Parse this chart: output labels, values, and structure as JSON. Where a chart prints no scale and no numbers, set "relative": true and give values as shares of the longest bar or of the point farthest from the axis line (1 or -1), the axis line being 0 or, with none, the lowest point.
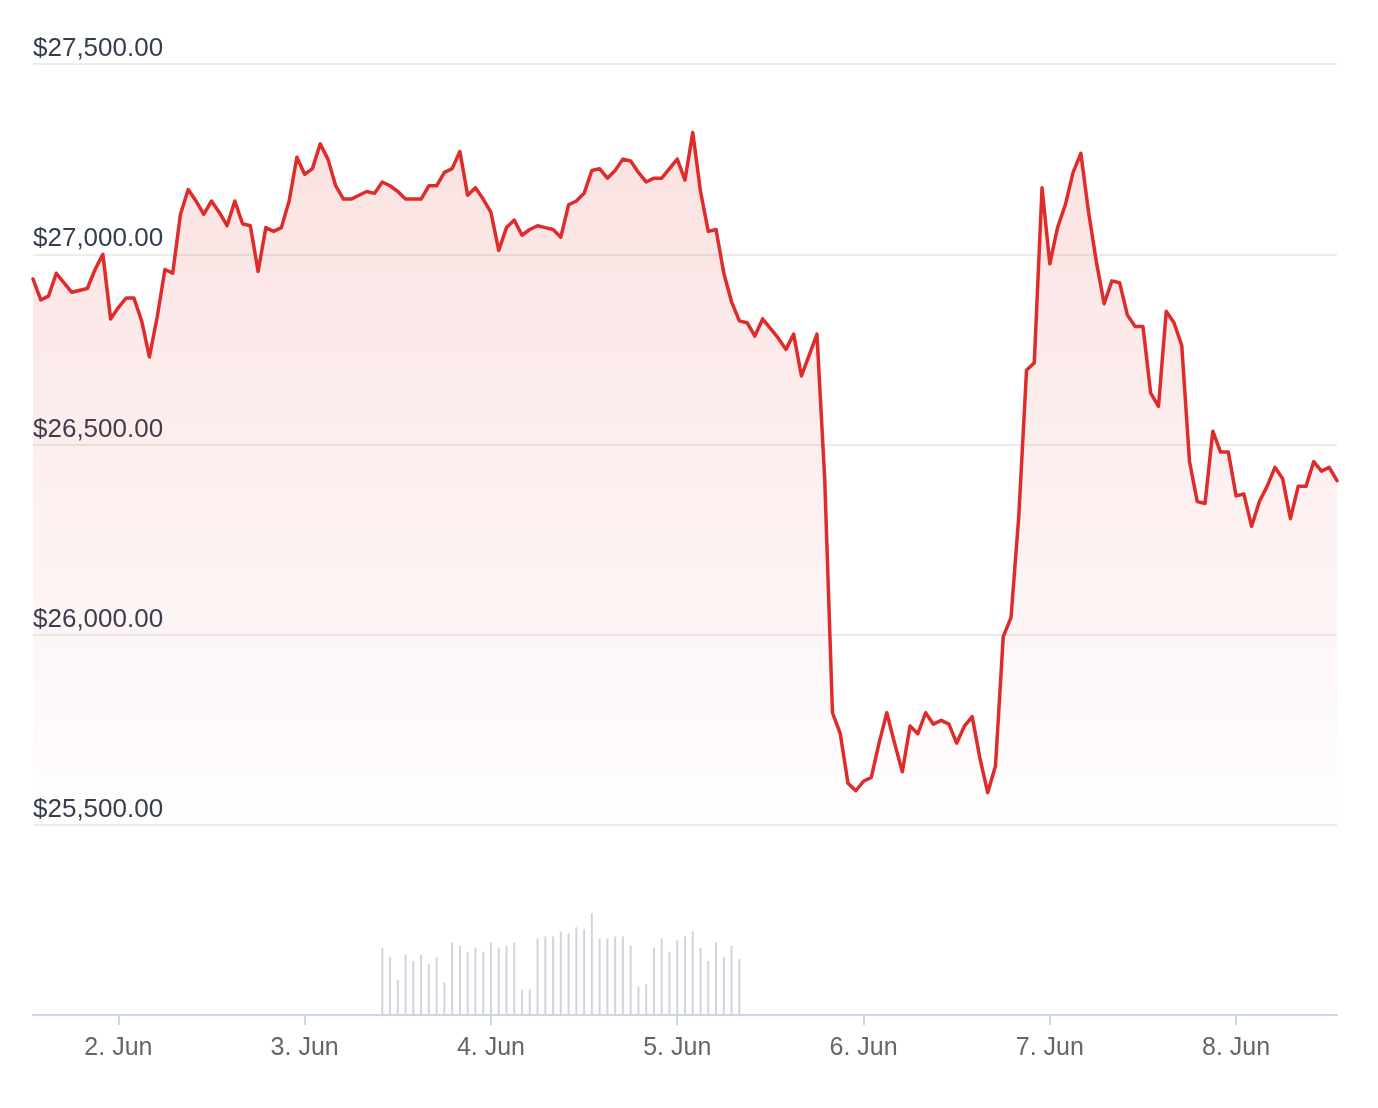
{
  "chart_data": [
    {
      "type": "area",
      "color": "#e02b2b",
      "xlim": [
        "--06-01T13:00",
        "--06-08T13:00"
      ],
      "ylim": [
        25500,
        27500
      ],
      "yticks": [
        {
          "value": 25500,
          "label": "$25,500.00"
        },
        {
          "value": 26000,
          "label": "$26,000.00"
        },
        {
          "value": 26500,
          "label": "$26,500.00"
        },
        {
          "value": 27000,
          "label": "$27,000.00"
        },
        {
          "value": 27500,
          "label": "$27,500.00"
        }
      ],
      "grid": "y",
      "tick_labels": "y",
      "x": [
        "--06-01T13:00",
        "--06-01T14:00",
        "--06-01T15:00",
        "--06-01T16:00",
        "--06-01T18:00",
        "--06-01T20:00",
        "--06-01T21:00",
        "--06-01T22:00",
        "--06-01T23:00",
        "--06-02T00:00",
        "--06-02T01:00",
        "--06-02T02:00",
        "--06-02T03:00",
        "--06-02T04:00",
        "--06-02T05:00",
        "--06-02T06:00",
        "--06-02T07:00",
        "--06-02T08:00",
        "--06-02T09:00",
        "--06-02T10:00",
        "--06-02T11:00",
        "--06-02T12:00",
        "--06-02T13:00",
        "--06-02T14:00",
        "--06-02T15:00",
        "--06-02T16:00",
        "--06-02T17:00",
        "--06-02T18:00",
        "--06-02T19:00",
        "--06-02T20:00",
        "--06-02T21:00",
        "--06-02T22:00",
        "--06-02T23:00",
        "--06-03T00:00",
        "--06-03T01:00",
        "--06-03T02:00",
        "--06-03T03:00",
        "--06-03T04:00",
        "--06-03T05:00",
        "--06-03T06:00",
        "--06-03T07:00",
        "--06-03T08:00",
        "--06-03T09:00",
        "--06-03T10:00",
        "--06-03T11:00",
        "--06-03T12:00",
        "--06-03T13:00",
        "--06-03T14:00",
        "--06-03T15:00",
        "--06-03T16:00",
        "--06-03T17:00",
        "--06-03T18:00",
        "--06-03T19:00",
        "--06-03T20:00",
        "--06-03T21:00",
        "--06-03T22:00",
        "--06-03T23:00",
        "--06-04T00:00",
        "--06-04T01:00",
        "--06-04T02:00",
        "--06-04T03:00",
        "--06-04T04:00",
        "--06-04T05:00",
        "--06-04T06:00",
        "--06-04T07:00",
        "--06-04T08:00",
        "--06-04T09:00",
        "--06-04T10:00",
        "--06-04T11:00",
        "--06-04T12:00",
        "--06-04T13:00",
        "--06-04T14:00",
        "--06-04T15:00",
        "--06-04T16:00",
        "--06-04T17:00",
        "--06-04T18:00",
        "--06-04T19:00",
        "--06-04T20:00",
        "--06-04T21:00",
        "--06-04T22:00",
        "--06-04T23:00",
        "--06-05T00:00",
        "--06-05T01:00",
        "--06-05T02:00",
        "--06-05T03:00",
        "--06-05T04:00",
        "--06-05T05:00",
        "--06-05T06:00",
        "--06-05T07:00",
        "--06-05T08:00",
        "--06-05T09:00",
        "--06-05T10:00",
        "--06-05T11:00",
        "--06-05T12:00",
        "--06-05T13:00",
        "--06-05T14:00",
        "--06-05T15:00",
        "--06-05T16:00",
        "--06-05T17:00",
        "--06-05T18:00",
        "--06-05T19:00",
        "--06-05T20:00",
        "--06-05T21:00",
        "--06-05T22:00",
        "--06-05T23:00",
        "--06-06T00:00",
        "--06-06T01:00",
        "--06-06T02:00",
        "--06-06T03:00",
        "--06-06T04:00",
        "--06-06T05:00",
        "--06-06T06:00",
        "--06-06T07:00",
        "--06-06T08:00",
        "--06-06T09:00",
        "--06-06T10:00",
        "--06-06T11:00",
        "--06-06T12:00",
        "--06-06T13:00",
        "--06-06T14:00",
        "--06-06T15:00",
        "--06-06T16:00",
        "--06-06T17:00",
        "--06-06T18:00",
        "--06-06T19:00",
        "--06-06T20:00",
        "--06-06T21:00",
        "--06-06T22:00",
        "--06-06T23:00",
        "--06-07T00:00",
        "--06-07T01:00",
        "--06-07T02:00",
        "--06-07T03:00",
        "--06-07T04:00",
        "--06-07T05:00",
        "--06-07T06:00",
        "--06-07T07:00",
        "--06-07T08:00",
        "--06-07T09:00",
        "--06-07T10:00",
        "--06-07T11:00",
        "--06-07T12:00",
        "--06-07T13:00",
        "--06-07T14:00",
        "--06-07T15:00",
        "--06-07T16:00",
        "--06-07T17:00",
        "--06-07T18:00",
        "--06-07T19:00",
        "--06-07T20:00",
        "--06-07T21:00",
        "--06-07T22:00",
        "--06-07T23:00",
        "--06-08T00:00",
        "--06-08T01:00",
        "--06-08T02:00",
        "--06-08T03:00",
        "--06-08T04:00",
        "--06-08T05:00",
        "--06-08T06:00",
        "--06-08T07:00",
        "--06-08T08:00",
        "--06-08T09:00",
        "--06-08T10:00",
        "--06-08T11:00",
        "--06-08T12:00",
        "--06-08T13:00"
      ],
      "values": [
        26935,
        26880,
        26890,
        26950,
        26900,
        26910,
        26960,
        27000,
        26830,
        26860,
        26885,
        26885,
        26825,
        26730,
        26835,
        26960,
        26950,
        27105,
        27170,
        27140,
        27105,
        27140,
        27110,
        27075,
        27140,
        27080,
        27075,
        26955,
        27070,
        27060,
        27070,
        27140,
        27255,
        27210,
        27225,
        27290,
        27250,
        27180,
        27145,
        27145,
        27155,
        27165,
        27160,
        27190,
        27180,
        27165,
        27145,
        27145,
        27145,
        27180,
        27180,
        27215,
        27225,
        27270,
        27155,
        27175,
        27145,
        27110,
        27010,
        27070,
        27090,
        27050,
        27065,
        27075,
        27070,
        27065,
        27045,
        27130,
        27140,
        27160,
        27220,
        27225,
        27200,
        27220,
        27250,
        27245,
        27215,
        27190,
        27200,
        27200,
        27225,
        27250,
        27195,
        27320,
        27165,
        27060,
        27065,
        26950,
        26875,
        26825,
        26820,
        26785,
        26830,
        26805,
        26780,
        26750,
        26790,
        26680,
        26735,
        26790,
        26410,
        25795,
        25740,
        25610,
        25590,
        25615,
        25625,
        25715,
        25795,
        25715,
        25640,
        25760,
        25740,
        25795,
        25765,
        25775,
        25765,
        25715,
        25760,
        25785,
        25675,
        25585,
        25655,
        25995,
        26045,
        26310,
        26695,
        26715,
        27175,
        26975,
        27070,
        27130,
        27215,
        27265,
        27110,
        26980,
        26870,
        26930,
        26925,
        26840,
        26810,
        26810,
        26635,
        26600,
        26850,
        26820,
        26760,
        26455,
        26350,
        26345,
        26535,
        26480,
        26480,
        26365,
        26370,
        26285,
        26350,
        26390,
        26440,
        26410,
        26305,
        26390,
        26390,
        26455,
        26430,
        26440,
        26405
      ]
    },
    {
      "type": "bar",
      "color": "#d0d4dc",
      "relative": true,
      "xlim": [
        "--06-01T13:00",
        "--06-08T13:00"
      ],
      "xticks": [
        {
          "value": "--06-02",
          "label": "2. Jun"
        },
        {
          "value": "--06-03",
          "label": "3. Jun"
        },
        {
          "value": "--06-04",
          "label": "4. Jun"
        },
        {
          "value": "--06-05",
          "label": "5. Jun"
        },
        {
          "value": "--06-06",
          "label": "6. Jun"
        },
        {
          "value": "--06-07",
          "label": "7. Jun"
        },
        {
          "value": "--06-08",
          "label": "8. Jun"
        }
      ],
      "tick_labels": "x",
      "x": [
        "--06-03T10:00",
        "--06-03T11:00",
        "--06-03T12:00",
        "--06-03T13:00",
        "--06-03T14:00",
        "--06-03T15:00",
        "--06-03T16:00",
        "--06-03T17:00",
        "--06-03T18:00",
        "--06-03T19:00",
        "--06-03T20:00",
        "--06-03T21:00",
        "--06-03T22:00",
        "--06-03T23:00",
        "--06-04T00:00",
        "--06-04T01:00",
        "--06-04T02:00",
        "--06-04T03:00",
        "--06-04T04:00",
        "--06-04T05:00",
        "--06-04T06:00",
        "--06-04T07:00",
        "--06-04T08:00",
        "--06-04T09:00",
        "--06-04T10:00",
        "--06-04T11:00",
        "--06-04T12:00",
        "--06-04T13:00",
        "--06-04T14:00",
        "--06-04T15:00",
        "--06-04T16:00",
        "--06-04T17:00",
        "--06-04T18:00",
        "--06-04T19:00",
        "--06-04T20:00",
        "--06-04T21:00",
        "--06-04T22:00",
        "--06-04T23:00",
        "--06-05T00:00",
        "--06-05T01:00",
        "--06-05T02:00",
        "--06-05T03:00",
        "--06-05T04:00",
        "--06-05T05:00",
        "--06-05T06:00",
        "--06-05T07:00",
        "--06-05T08:00"
      ],
      "values": [
        0.66,
        0.57,
        0.34,
        0.59,
        0.53,
        0.59,
        0.5,
        0.57,
        0.32,
        0.71,
        0.68,
        0.62,
        0.66,
        0.62,
        0.71,
        0.66,
        0.68,
        0.71,
        0.25,
        0.25,
        0.75,
        0.77,
        0.77,
        0.82,
        0.8,
        0.86,
        0.84,
        1,
        0.75,
        0.75,
        0.77,
        0.77,
        0.68,
        0.28,
        0.3,
        0.66,
        0.75,
        0.62,
        0.73,
        0.77,
        0.82,
        0.66,
        0.53,
        0.71,
        0.57,
        0.68,
        0.55
      ]
    }
  ]
}
